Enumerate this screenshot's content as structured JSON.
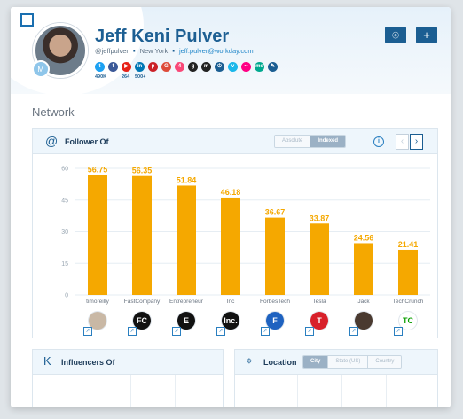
{
  "profile": {
    "name": "Jeff Keni Pulver",
    "handle": "@jeffpulver",
    "location": "New York",
    "email": "jeff.pulver@workday.com",
    "avatar_badge": "M",
    "socials": [
      {
        "icon": "twitter-icon",
        "color": "#1da1f2",
        "glyph": "t",
        "count": "490K"
      },
      {
        "icon": "facebook-icon",
        "color": "#3b5998",
        "glyph": "f",
        "count": ""
      },
      {
        "icon": "youtube-icon",
        "color": "#e62117",
        "glyph": "▶",
        "count": "264"
      },
      {
        "icon": "linkedin-icon",
        "color": "#0077b5",
        "glyph": "in",
        "count": "500+"
      },
      {
        "icon": "pinterest-icon",
        "color": "#cb2027",
        "glyph": "p",
        "count": ""
      },
      {
        "icon": "google-plus-icon",
        "color": "#dd4b39",
        "glyph": "G",
        "count": ""
      },
      {
        "icon": "foursquare-icon",
        "color": "#f94877",
        "glyph": "4",
        "count": ""
      },
      {
        "icon": "github-icon",
        "color": "#222222",
        "glyph": "g",
        "count": ""
      },
      {
        "icon": "meetup-icon",
        "color": "#222222",
        "glyph": "m",
        "count": ""
      },
      {
        "icon": "power-icon",
        "color": "#1b5e92",
        "glyph": "⏻",
        "count": ""
      },
      {
        "icon": "vimeo-icon",
        "color": "#1ab7ea",
        "glyph": "v",
        "count": ""
      },
      {
        "icon": "flickr-icon",
        "color": "#ff0084",
        "glyph": "••",
        "count": ""
      },
      {
        "icon": "about-me-icon",
        "color": "#00a98f",
        "glyph": "me",
        "count": ""
      },
      {
        "icon": "edit-icon",
        "color": "#1b5e92",
        "glyph": "✎",
        "count": ""
      }
    ]
  },
  "toolbar": {
    "scan_icon": "scan-icon",
    "add_icon": "plus-icon"
  },
  "section_title": "Network",
  "follower_panel": {
    "title": "Follower Of",
    "segments": [
      {
        "label": "Absolute",
        "active": false
      },
      {
        "label": "Indexed",
        "active": true
      }
    ],
    "info": "i",
    "prev": "‹",
    "next": "›"
  },
  "chart_data": {
    "type": "bar",
    "categories": [
      "timoreilly",
      "FastCompany",
      "Entrepreneur",
      "Inc",
      "ForbesTech",
      "Tesla",
      "Jack",
      "TechCrunch"
    ],
    "values": [
      56.75,
      56.35,
      51.84,
      46.18,
      36.67,
      33.87,
      24.56,
      21.41
    ],
    "ylim": [
      0,
      60
    ],
    "yticks": [
      0,
      15,
      30,
      45,
      60
    ],
    "grid": true,
    "bar_color": "#f5a800",
    "title": "",
    "xlabel": "",
    "ylabel": ""
  },
  "logos": [
    {
      "name": "timoreilly",
      "glyph": "",
      "bg": "#c9b8a5",
      "fg": "#fff"
    },
    {
      "name": "FastCompany",
      "glyph": "FC",
      "bg": "#111",
      "fg": "#fff"
    },
    {
      "name": "Entrepreneur",
      "glyph": "E",
      "bg": "#111",
      "fg": "#fff"
    },
    {
      "name": "Inc",
      "glyph": "Inc.",
      "bg": "#111",
      "fg": "#fff"
    },
    {
      "name": "ForbesTech",
      "glyph": "F",
      "bg": "#1e62c0",
      "fg": "#fff"
    },
    {
      "name": "Tesla",
      "glyph": "T",
      "bg": "#d8202a",
      "fg": "#fff"
    },
    {
      "name": "Jack",
      "glyph": "",
      "bg": "#4a3a30",
      "fg": "#fff"
    },
    {
      "name": "TechCrunch",
      "glyph": "TC",
      "bg": "#fff",
      "fg": "#0a9e01"
    }
  ],
  "influencers_panel": {
    "title": "Influencers Of"
  },
  "location_panel": {
    "title": "Location",
    "segments": [
      {
        "label": "City",
        "active": true
      },
      {
        "label": "State (US)",
        "active": false
      },
      {
        "label": "Country",
        "active": false
      }
    ]
  }
}
